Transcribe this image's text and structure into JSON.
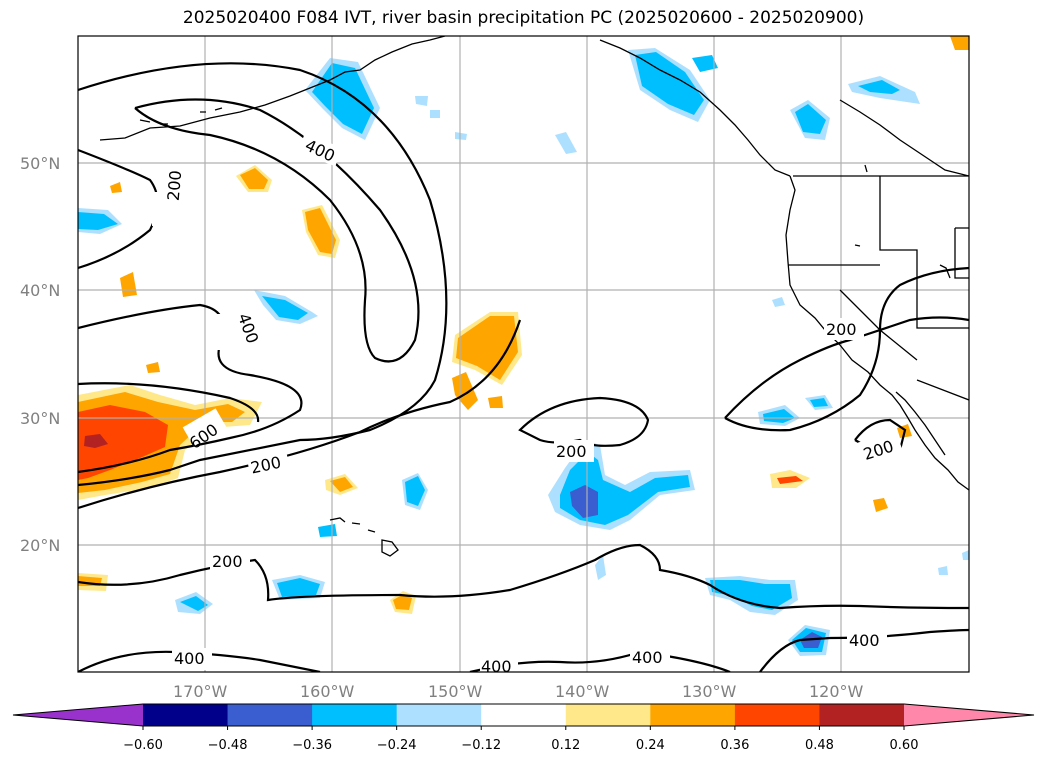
{
  "title": "2025020400 F084 IVT, river basin precipitation PC (2025020600 - 2025020900)",
  "map": {
    "lat_labels": [
      "50°N",
      "40°N",
      "30°N",
      "20°N"
    ],
    "lon_labels": [
      "170°W",
      "160°W",
      "150°W",
      "140°W",
      "130°W",
      "120°W"
    ],
    "lon_range": [
      -180,
      -110
    ],
    "lat_range": [
      10,
      60
    ],
    "grid": true,
    "contour_labels": [
      "400",
      "200",
      "400",
      "600",
      "200",
      "200",
      "200",
      "200",
      "400",
      "400",
      "400",
      "200",
      "400"
    ]
  },
  "colorbar": {
    "extend": "both",
    "levels": [
      "−0.60",
      "−0.48",
      "−0.36",
      "−0.24",
      "−0.12",
      "0.12",
      "0.24",
      "0.36",
      "0.48",
      "0.60"
    ],
    "colors": [
      "#9932CC",
      "#00008B",
      "#3A5ECF",
      "#00BFFF",
      "#ADE0FF",
      "#FFFFFF",
      "#FFE88A",
      "#FFA500",
      "#FF4500",
      "#B22222",
      "#FF88AA"
    ]
  }
}
